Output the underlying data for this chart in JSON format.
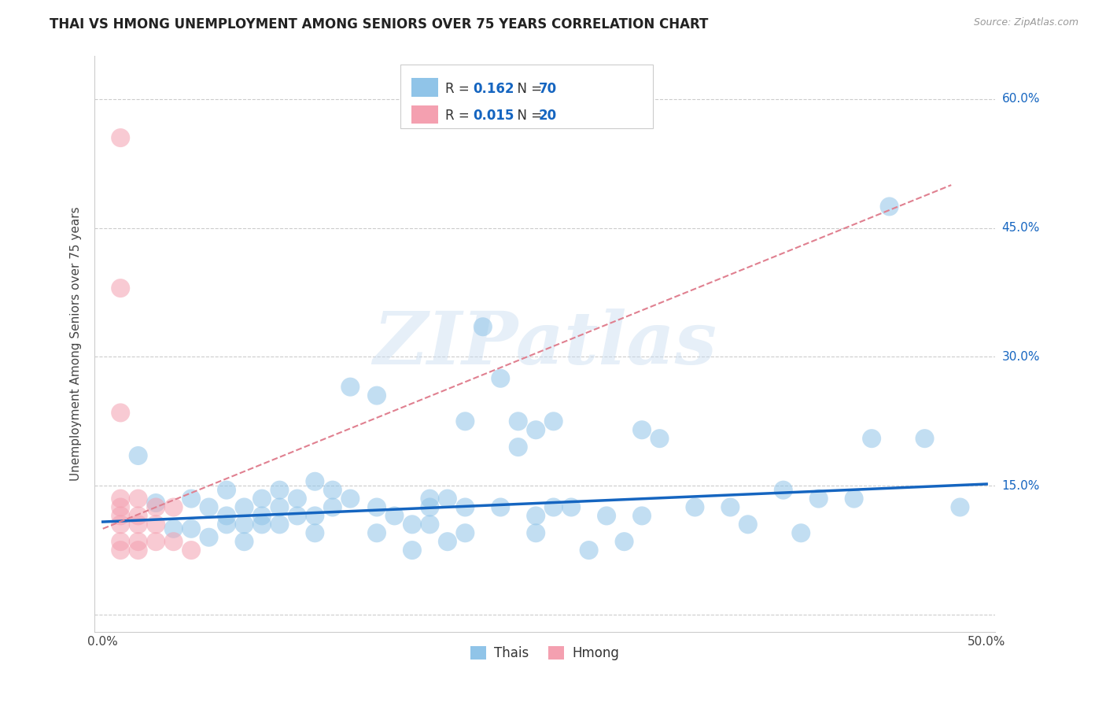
{
  "title": "THAI VS HMONG UNEMPLOYMENT AMONG SENIORS OVER 75 YEARS CORRELATION CHART",
  "source": "Source: ZipAtlas.com",
  "ylabel": "Unemployment Among Seniors over 75 years",
  "xlim": [
    -0.005,
    0.505
  ],
  "ylim": [
    -0.02,
    0.65
  ],
  "ytick_vals": [
    0.0,
    0.15,
    0.3,
    0.45,
    0.6
  ],
  "ytick_labels": [
    "",
    "15.0%",
    "30.0%",
    "45.0%",
    "60.0%"
  ],
  "xtick_vals": [
    0.0,
    0.1,
    0.2,
    0.3,
    0.4,
    0.5
  ],
  "xtick_labels": [
    "0.0%",
    "",
    "",
    "",
    "",
    "50.0%"
  ],
  "background_color": "#ffffff",
  "grid_color": "#cccccc",
  "watermark_text": "ZIPatlas",
  "thai_color": "#90C4E8",
  "hmong_color": "#F4A0B0",
  "thai_line_color": "#1565C0",
  "hmong_line_color": "#E08090",
  "thai_scatter": [
    [
      0.02,
      0.185
    ],
    [
      0.03,
      0.13
    ],
    [
      0.04,
      0.1
    ],
    [
      0.05,
      0.135
    ],
    [
      0.05,
      0.1
    ],
    [
      0.06,
      0.125
    ],
    [
      0.06,
      0.09
    ],
    [
      0.07,
      0.145
    ],
    [
      0.07,
      0.115
    ],
    [
      0.07,
      0.105
    ],
    [
      0.08,
      0.125
    ],
    [
      0.08,
      0.105
    ],
    [
      0.08,
      0.085
    ],
    [
      0.09,
      0.135
    ],
    [
      0.09,
      0.115
    ],
    [
      0.09,
      0.105
    ],
    [
      0.1,
      0.145
    ],
    [
      0.1,
      0.125
    ],
    [
      0.1,
      0.105
    ],
    [
      0.11,
      0.135
    ],
    [
      0.11,
      0.115
    ],
    [
      0.12,
      0.155
    ],
    [
      0.12,
      0.115
    ],
    [
      0.12,
      0.095
    ],
    [
      0.13,
      0.145
    ],
    [
      0.13,
      0.125
    ],
    [
      0.14,
      0.265
    ],
    [
      0.14,
      0.135
    ],
    [
      0.155,
      0.255
    ],
    [
      0.155,
      0.125
    ],
    [
      0.155,
      0.095
    ],
    [
      0.165,
      0.115
    ],
    [
      0.175,
      0.105
    ],
    [
      0.175,
      0.075
    ],
    [
      0.185,
      0.135
    ],
    [
      0.185,
      0.125
    ],
    [
      0.185,
      0.105
    ],
    [
      0.195,
      0.135
    ],
    [
      0.195,
      0.085
    ],
    [
      0.205,
      0.225
    ],
    [
      0.205,
      0.125
    ],
    [
      0.205,
      0.095
    ],
    [
      0.215,
      0.335
    ],
    [
      0.225,
      0.275
    ],
    [
      0.225,
      0.125
    ],
    [
      0.235,
      0.225
    ],
    [
      0.235,
      0.195
    ],
    [
      0.245,
      0.215
    ],
    [
      0.245,
      0.115
    ],
    [
      0.245,
      0.095
    ],
    [
      0.255,
      0.225
    ],
    [
      0.255,
      0.125
    ],
    [
      0.265,
      0.125
    ],
    [
      0.275,
      0.075
    ],
    [
      0.285,
      0.115
    ],
    [
      0.295,
      0.085
    ],
    [
      0.305,
      0.215
    ],
    [
      0.305,
      0.115
    ],
    [
      0.315,
      0.205
    ],
    [
      0.335,
      0.125
    ],
    [
      0.355,
      0.125
    ],
    [
      0.365,
      0.105
    ],
    [
      0.385,
      0.145
    ],
    [
      0.395,
      0.095
    ],
    [
      0.405,
      0.135
    ],
    [
      0.425,
      0.135
    ],
    [
      0.435,
      0.205
    ],
    [
      0.445,
      0.475
    ],
    [
      0.465,
      0.205
    ],
    [
      0.485,
      0.125
    ]
  ],
  "hmong_scatter": [
    [
      0.01,
      0.555
    ],
    [
      0.01,
      0.38
    ],
    [
      0.01,
      0.235
    ],
    [
      0.01,
      0.135
    ],
    [
      0.01,
      0.125
    ],
    [
      0.01,
      0.115
    ],
    [
      0.01,
      0.105
    ],
    [
      0.01,
      0.085
    ],
    [
      0.01,
      0.075
    ],
    [
      0.02,
      0.135
    ],
    [
      0.02,
      0.115
    ],
    [
      0.02,
      0.105
    ],
    [
      0.02,
      0.085
    ],
    [
      0.02,
      0.075
    ],
    [
      0.03,
      0.125
    ],
    [
      0.03,
      0.105
    ],
    [
      0.03,
      0.085
    ],
    [
      0.04,
      0.125
    ],
    [
      0.04,
      0.085
    ],
    [
      0.05,
      0.075
    ]
  ],
  "thai_line": [
    0.0,
    0.5,
    0.108,
    0.152
  ],
  "hmong_line": [
    0.0,
    0.5,
    0.115,
    0.5
  ],
  "legend_thai_label": "R = 0.162   N = 70",
  "legend_hmong_label": "R = 0.015   N = 20"
}
